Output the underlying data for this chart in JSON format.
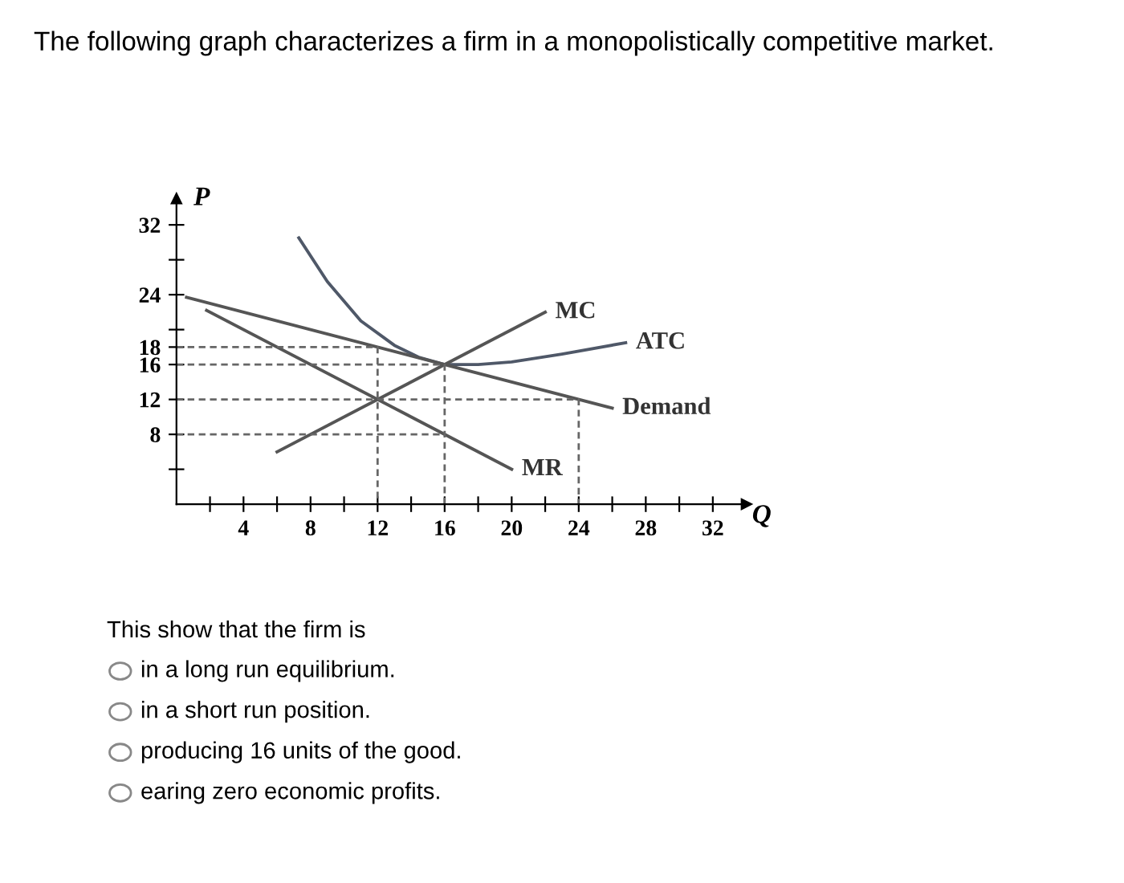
{
  "chart_data": {
    "type": "line",
    "title": "The following graph characterizes a firm in a monopolistically competitive market.",
    "xlabel": "Q",
    "ylabel": "P",
    "xlim": [
      0,
      34
    ],
    "ylim": [
      0,
      35
    ],
    "xticks": [
      {
        "value": 2,
        "label": null
      },
      4,
      {
        "value": 6,
        "label": null
      },
      8,
      {
        "value": 10,
        "label": null
      },
      12,
      {
        "value": 14,
        "label": null
      },
      16,
      {
        "value": 18,
        "label": null
      },
      20,
      {
        "value": 22,
        "label": null
      },
      24,
      {
        "value": 26,
        "label": null
      },
      28,
      {
        "value": 30,
        "label": null
      },
      32
    ],
    "yticks": [
      {
        "value": 4,
        "label": null
      },
      8,
      12,
      16,
      18,
      {
        "value": 20,
        "label": null
      },
      24,
      {
        "value": 28,
        "label": null
      },
      32
    ],
    "grid": false,
    "legend": false,
    "marker": "none",
    "series": [
      {
        "name": "ATC",
        "color": "#4f5868",
        "x": [
          7.3,
          9,
          11,
          13,
          14.5,
          16,
          18,
          20,
          23,
          26.8
        ],
        "values": [
          30.5,
          25.5,
          21,
          18.2,
          16.8,
          16,
          16,
          16.3,
          17.2,
          18.5
        ]
      },
      {
        "name": "MC",
        "color": "#555555",
        "x": [
          6,
          22
        ],
        "values": [
          6,
          22
        ]
      },
      {
        "name": "Demand",
        "color": "#555555",
        "x": [
          0.6,
          26
        ],
        "values": [
          23.7,
          11
        ]
      },
      {
        "name": "MR",
        "color": "#555555",
        "x": [
          1.8,
          20
        ],
        "values": [
          22.2,
          4
        ]
      },
      {
        "color": "#666666",
        "line_style": "dashed",
        "x": [
          0,
          12,
          12
        ],
        "values": [
          18,
          18,
          0
        ]
      },
      {
        "color": "#666666",
        "line_style": "dashed",
        "x": [
          0,
          16,
          16
        ],
        "values": [
          16,
          16,
          0
        ]
      },
      {
        "color": "#666666",
        "line_style": "dashed",
        "x": [
          0,
          24,
          24
        ],
        "values": [
          12,
          12,
          0
        ]
      },
      {
        "color": "#666666",
        "line_style": "dashed",
        "x": [
          0,
          16
        ],
        "values": [
          8,
          8
        ]
      }
    ],
    "annotations": [
      "This show that the firm is",
      "in a long run equilibrium.",
      "in a short run position.",
      "producing 16 units of the good.",
      "earing zero economic profits."
    ]
  }
}
